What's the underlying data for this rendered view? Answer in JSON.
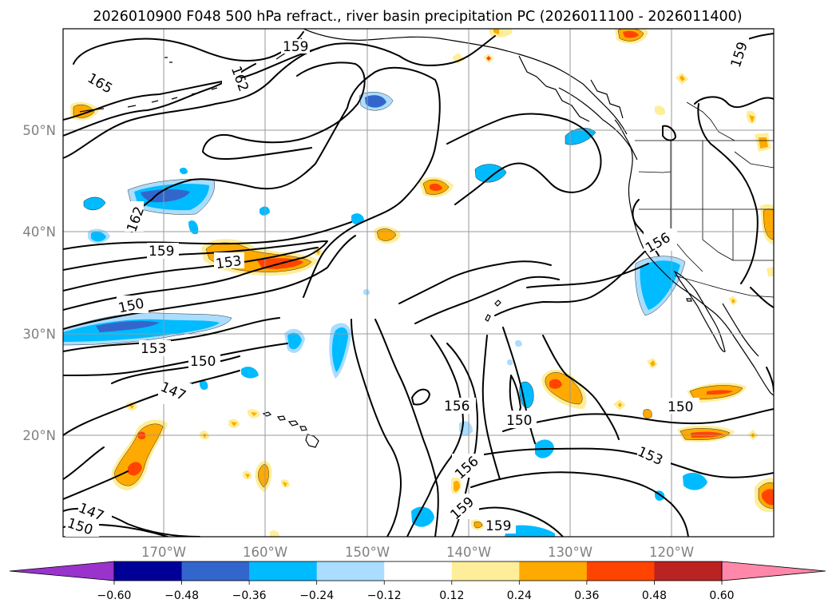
{
  "title": "2026010900 F048 500 hPa refract., river basin precipitation PC (2026011100 - 2026011400)",
  "lat_labels": [
    "50°N",
    "40°N",
    "30°N",
    "20°N"
  ],
  "lon_labels": [
    "170°W",
    "160°W",
    "150°W",
    "140°W",
    "130°W",
    "120°W"
  ],
  "contour_labels": [
    "159",
    "165",
    "162",
    "162",
    "159",
    "153",
    "150",
    "153",
    "150",
    "147",
    "156",
    "156",
    "150",
    "156",
    "159",
    "159",
    "153",
    "150",
    "147",
    "150",
    "159"
  ],
  "colorbar": {
    "colors": [
      "#9933cc",
      "#000099",
      "#3366cc",
      "#00bbff",
      "#aaddff",
      "#ffffff",
      "#ffee99",
      "#ffaa00",
      "#ff4400",
      "#bb2222",
      "#ff88aa"
    ],
    "tick_labels": [
      "−0.60",
      "−0.48",
      "−0.36",
      "−0.24",
      "−0.12",
      "0.12",
      "0.24",
      "0.36",
      "0.48",
      "0.60"
    ]
  }
}
